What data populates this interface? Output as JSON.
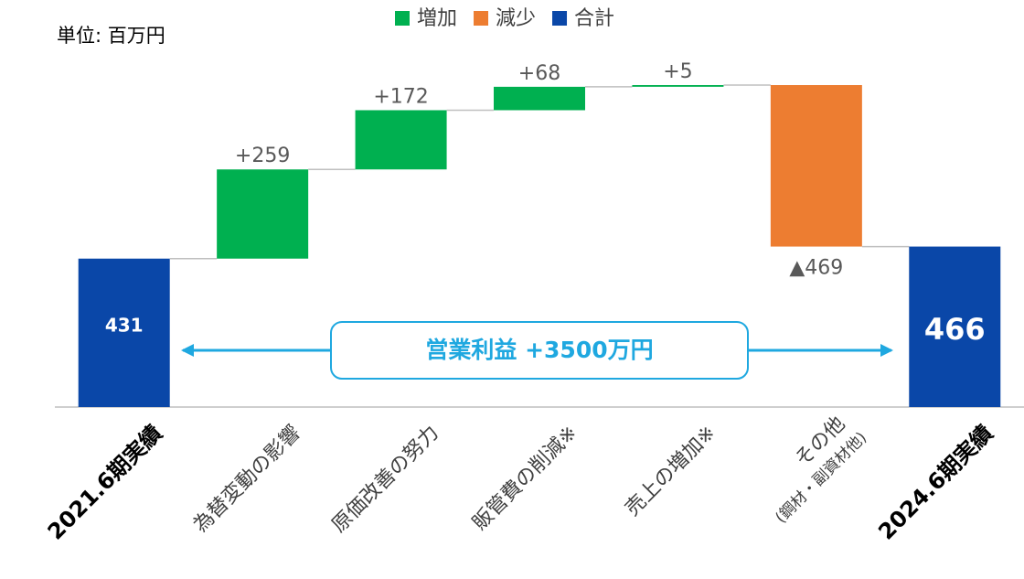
{
  "chart_data": {
    "type": "waterfall",
    "unit_label": "単位: 百万円",
    "categories": [
      "2021.6期実績",
      "為替変動の影響",
      "原価改善の努力",
      "販管費の削減※",
      "売上の増加※",
      [
        "その他",
        "(鋼材・副資材他)"
      ],
      "2024.6期実績"
    ],
    "measure": [
      "absolute",
      "relative",
      "relative",
      "relative",
      "relative",
      "relative",
      "absolute"
    ],
    "values": [
      431,
      259,
      172,
      68,
      5,
      -469,
      466
    ],
    "value_labels": [
      "431",
      "+259",
      "+172",
      "+68",
      "+5",
      "▲469",
      "466"
    ],
    "legend": [
      {
        "name": "増加",
        "color": "#00b050",
        "role": "increase"
      },
      {
        "name": "減少",
        "color": "#ed7d31",
        "role": "decrease"
      },
      {
        "name": "合計",
        "color": "#0a47a8",
        "role": "total"
      }
    ],
    "annotation": "営業利益 +3500万円"
  }
}
